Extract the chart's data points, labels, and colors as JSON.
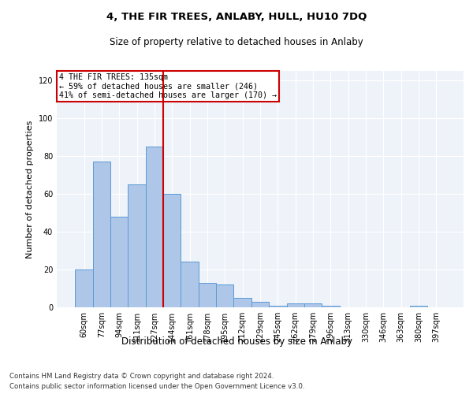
{
  "title": "4, THE FIR TREES, ANLABY, HULL, HU10 7DQ",
  "subtitle": "Size of property relative to detached houses in Anlaby",
  "xlabel": "Distribution of detached houses by size in Anlaby",
  "ylabel": "Number of detached properties",
  "categories": [
    "60sqm",
    "77sqm",
    "94sqm",
    "111sqm",
    "127sqm",
    "144sqm",
    "161sqm",
    "178sqm",
    "195sqm",
    "212sqm",
    "229sqm",
    "245sqm",
    "262sqm",
    "279sqm",
    "296sqm",
    "313sqm",
    "330sqm",
    "346sqm",
    "363sqm",
    "380sqm",
    "397sqm"
  ],
  "values": [
    20,
    77,
    48,
    65,
    85,
    60,
    24,
    13,
    12,
    5,
    3,
    1,
    2,
    2,
    1,
    0,
    0,
    0,
    0,
    1,
    0
  ],
  "bar_color": "#aec6e8",
  "bar_edge_color": "#5b9bd5",
  "property_line_x": 4.5,
  "annotation_line1": "4 THE FIR TREES: 135sqm",
  "annotation_line2": "← 59% of detached houses are smaller (246)",
  "annotation_line3": "41% of semi-detached houses are larger (170) →",
  "vline_color": "#cc0000",
  "box_edge_color": "#cc0000",
  "ylim": [
    0,
    125
  ],
  "yticks": [
    0,
    20,
    40,
    60,
    80,
    100,
    120
  ],
  "background_color": "#eef2f9",
  "footer_line1": "Contains HM Land Registry data © Crown copyright and database right 2024.",
  "footer_line2": "Contains public sector information licensed under the Open Government Licence v3.0."
}
